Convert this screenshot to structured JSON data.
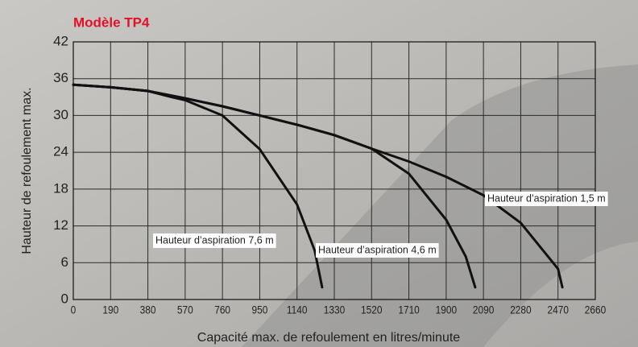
{
  "chart_data": {
    "type": "line",
    "title": "Modèle TP4",
    "x_label": "Capacité max. de refoulement  en litres/minute",
    "y_label": "Hauteur de refoulement max.",
    "xlim": [
      0,
      2660
    ],
    "xticks": [
      0,
      190,
      380,
      570,
      760,
      950,
      1140,
      1330,
      1520,
      1710,
      1900,
      2090,
      2280,
      2470,
      2660
    ],
    "ylim": [
      0,
      42
    ],
    "yticks": [
      0,
      6,
      12,
      18,
      24,
      30,
      36,
      42
    ],
    "grid": true,
    "series": [
      {
        "name": "Hauteur d’aspiration 7,6 m",
        "color": "#111111",
        "x": [
          0,
          190,
          380,
          500,
          570,
          760,
          950,
          1140,
          1230,
          1268
        ],
        "values": [
          35,
          34.6,
          34,
          33,
          32.5,
          30,
          24.5,
          15.5,
          8,
          2
        ]
      },
      {
        "name": "Hauteur d’aspiration 4,6 m",
        "color": "#111111",
        "x": [
          0,
          190,
          380,
          570,
          760,
          950,
          1140,
          1330,
          1520,
          1710,
          1900,
          2000,
          2048
        ],
        "values": [
          35,
          34.6,
          34,
          32.8,
          31.5,
          30,
          28.5,
          26.8,
          24.6,
          20.5,
          13,
          7,
          2
        ]
      },
      {
        "name": "Hauteur d’aspiration 1,5 m",
        "color": "#111111",
        "x": [
          0,
          190,
          380,
          570,
          760,
          950,
          1140,
          1330,
          1520,
          1710,
          1900,
          2090,
          2280,
          2470,
          2492
        ],
        "values": [
          35,
          34.6,
          34,
          32.8,
          31.5,
          30,
          28.5,
          26.8,
          24.6,
          22.5,
          20,
          17,
          12.5,
          5,
          2
        ]
      }
    ]
  }
}
